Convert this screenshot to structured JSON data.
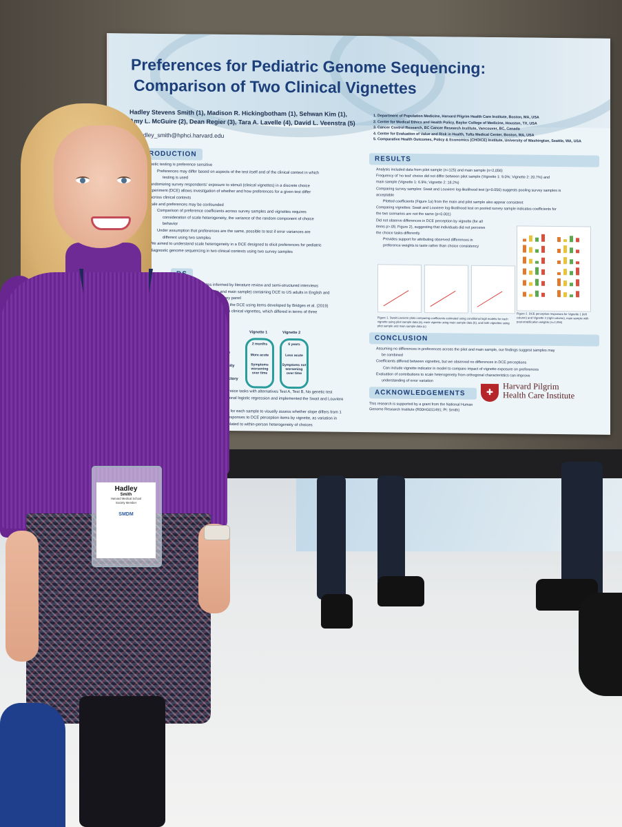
{
  "poster": {
    "title_line1": "Preferences for Pediatric Genome Sequencing:",
    "title_line2": "Comparison of Two Clinical Vignettes",
    "authors_line1": "Hadley Stevens Smith (1), Madison R. Hickingbotham (1), Sehwan Kim (1),",
    "authors_line2": "Amy L. McGuire (2), Dean Regier (3), Tara A. Lavelle (4), David L. Veenstra (5)",
    "email": "dley_smith@hphci.harvard.edu",
    "affiliations": [
      "1. Department of Population Medicine, Harvard Pilgrim Health Care Institute, Boston, MA, USA",
      "2. Center for Medical Ethics and Health Policy, Baylor College of Medicine, Houston, TX, USA",
      "3. Cancer Control Research, BC Cancer Research Institute, Vancouver, BC, Canada",
      "4. Center for Evaluation of Value and Risk in Health, Tufts Medical Center, Boston, MA, USA",
      "5. Comparative Health Outcomes, Policy & Economics (CHOICE) Institute, University of Washington, Seattle, WA, USA"
    ],
    "intro_head": "RODUCTION",
    "intro_lines": [
      "netic testing is preference sensitive",
      "Preferences may differ based on aspects of the test itself and of the clinical context in which",
      "testing is used",
      "andomizing survey respondents' exposure to stimuli (clinical vignettes) in a discrete choice",
      "xperiment (DCE) allows investigation of whether and how preferences for a given test differ",
      "across clinical contexts",
      "cale and preferences may be confounded",
      "Comparison of preference coefficients across survey samples and vignettes requires",
      "consideration of scale heterogeneity, the variance of the random component of choice",
      "behavior",
      "Under assumption that preferences are the same, possible to test if error variances are",
      "different using two samples",
      "We aimed to understand scale heterogeneity in a DCE designed to elicit preferences for pediatric",
      "diagnostic genome sequencing in two clinical contexts using two survey samples"
    ],
    "methods_head": "DS",
    "methods_lines": [
      "ributes informed by literature review and semi-structured interviews",
      "ilot sample and main sample) containing DCE to US adults in English and",
      "ion-based survey panel",
      "s' perceptions of the DCE using items developed by Bridges et al. (2019)",
      "to see one of two clinical vignettes, which differed in terms of three",
      "stics:"
    ],
    "vignette_table": {
      "col1": "Vignette 1",
      "col2": "Vignette 2",
      "rows": [
        "Child age",
        "ptom acuity",
        "ical trajectory"
      ],
      "v1": [
        "2 months",
        "More acute",
        "Symptoms worsening over time"
      ],
      "v2": [
        "6 years",
        "Less acute",
        "Symptoms not worsening over time"
      ]
    },
    "methods_lines2": [
      "d 10 choice tasks with alternatives Test A, Test B, No genetic test",
      "conditional logistic regression and implemented the Swait and Louviere",
      "eneity",
      "results for each sample to visually assess whether slope differs from 1",
      "pare responses to DCE perception items by vignette, as variation in",
      "d be related to within-person heterogeneity of choices"
    ],
    "results_head": "RESULTS",
    "results_lines": [
      "Analysis included data from pilot sample (n=125) and main sample (n=2,056)",
      "Frequency of 'no test' choice did not differ between pilot sample (Vignette 1: 9.0%; Vignette 2: 20.7%) and",
      "main sample (Vignette 1: 6.9%; Vignette 2: 18.2%)",
      "Comparing survey samples: Swait and Louviere log-likelihood test (p=0.056) suggests pooling survey samples is",
      "acceptable",
      "Plotted coefficients (Figure 1a) from the main and pilot sample also appear consistent",
      "Comparing vignettes: Swait and Louviere log-likelihood test on pooled survey sample indicates coefficients for",
      "the two scenarios are not the same (p<0.001)",
      "Did not observe differences in DCE perception by vignette (for all",
      "items p>.05; Figure 2), suggesting that individuals did not perceive",
      "the choice tasks differently",
      "Provides support for attributing observed differences in",
      "preference weights to taste rather than choice consistency"
    ],
    "fig1_caption": "Figure 1. Swait-Louviere plots comparing coefficients estimated using conditional logit models for each vignette using pilot sample data (a), each vignette using main sample data (b), and both vignettes using pilot sample and main sample data (c)",
    "fig2_caption": "Figure 2. DCE perception responses for Vignette 1 (left column) and Vignette 2 (right column), main sample with post-stratification weights (n=2,056)",
    "conclusion_head": "CONCLUSION",
    "conclusion_lines": [
      "Assuming no differences in preferences across the pilot and main sample, our findings suggest samples may",
      "be combined",
      "Coefficients differed between vignettes, but we observed no differences in DCE perceptions",
      "Can include vignette indicator in model to compare impact of vignette exposure on preferences",
      "Evaluation of contributions to scale heterogeneity from orthogonal characteristics can improve",
      "understanding of error variation"
    ],
    "ack_head": "ACKNOWLEDGEMENTS",
    "ack_text": "This research is supported by a grant from the National Human Genome Research Institute (R00HG011491; PI: Smith)",
    "logo_line1": "Harvard Pilgrim",
    "logo_line2": "Health Care Institute"
  },
  "badge": {
    "first_name": "Hadley",
    "last_name": "Smith",
    "org": "Harvard Medical School",
    "role": "Society Member",
    "logo": "SMDM"
  },
  "colors": {
    "title_blue": "#1c3f7a",
    "section_band": "#c5dcea",
    "sweater_purple": "#6a2690",
    "logo_red": "#b5262b"
  }
}
